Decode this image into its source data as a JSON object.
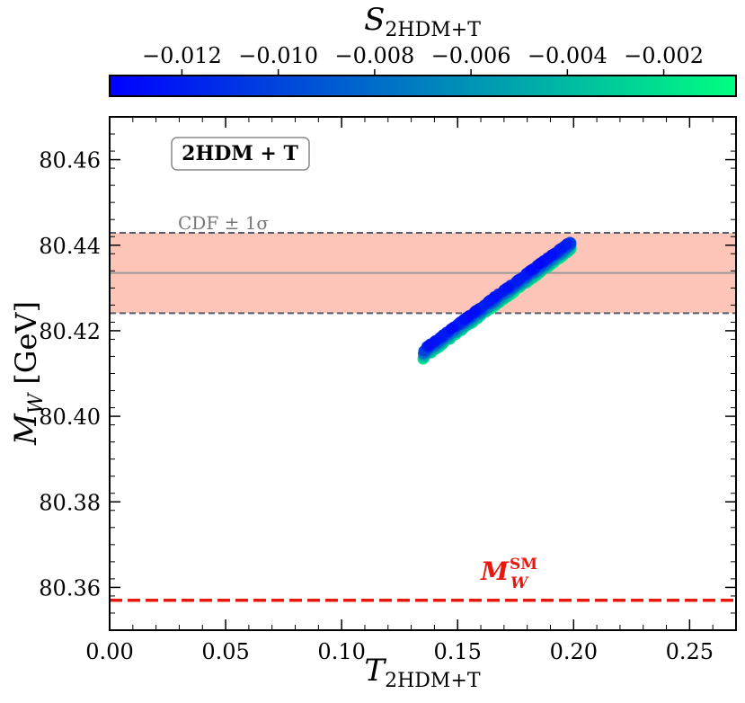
{
  "chart_data": {
    "type": "scatter",
    "colorbar": {
      "label_main": "S",
      "label_sub": "2HDM+T",
      "range": [
        -0.0135,
        -0.0005
      ],
      "colormap": [
        "#0000ff",
        "#00ff80"
      ],
      "ticks": [
        {
          "value": -0.012,
          "label": "−0.012"
        },
        {
          "value": -0.01,
          "label": "−0.010"
        },
        {
          "value": -0.008,
          "label": "−0.008"
        },
        {
          "value": -0.006,
          "label": "−0.006"
        },
        {
          "value": -0.004,
          "label": "−0.004"
        },
        {
          "value": -0.002,
          "label": "−0.002"
        }
      ]
    },
    "xlabel_main": "T",
    "xlabel_sub": "2HDM+T",
    "ylabel_main": "M",
    "ylabel_sub": "W",
    "ylabel_unit": "[GeV]",
    "xlim": [
      0.0,
      0.27
    ],
    "ylim": [
      80.35,
      80.47
    ],
    "x_ticks": [
      {
        "value": 0.0,
        "label": "0.00"
      },
      {
        "value": 0.05,
        "label": "0.05"
      },
      {
        "value": 0.1,
        "label": "0.10"
      },
      {
        "value": 0.15,
        "label": "0.15"
      },
      {
        "value": 0.2,
        "label": "0.20"
      },
      {
        "value": 0.25,
        "label": "0.25"
      }
    ],
    "y_ticks": [
      {
        "value": 80.36,
        "label": "80.36"
      },
      {
        "value": 80.38,
        "label": "80.38"
      },
      {
        "value": 80.4,
        "label": "80.40"
      },
      {
        "value": 80.42,
        "label": "80.42"
      },
      {
        "value": 80.44,
        "label": "80.44"
      },
      {
        "value": 80.46,
        "label": "80.46"
      }
    ],
    "cdf_band": {
      "label": "CDF ± 1σ",
      "central": 80.4335,
      "low": 80.4241,
      "high": 80.4429,
      "fill_color": "#fcc5b8",
      "line_color": "#999999",
      "dash_color": "#555e6b"
    },
    "sm_line": {
      "value": 80.357,
      "label_main": "M",
      "label_sup": "SM",
      "label_sub": "W",
      "color": "#e8170f"
    },
    "model_box_label": "2HDM + T",
    "scatter_band": {
      "x_start": 0.135,
      "x_end": 0.199,
      "y_start": 80.4145,
      "y_end": 80.44,
      "half_width_y": 0.0012,
      "s_upper_edge": -0.0125,
      "s_lower_edge": -0.001
    },
    "grid": false
  }
}
